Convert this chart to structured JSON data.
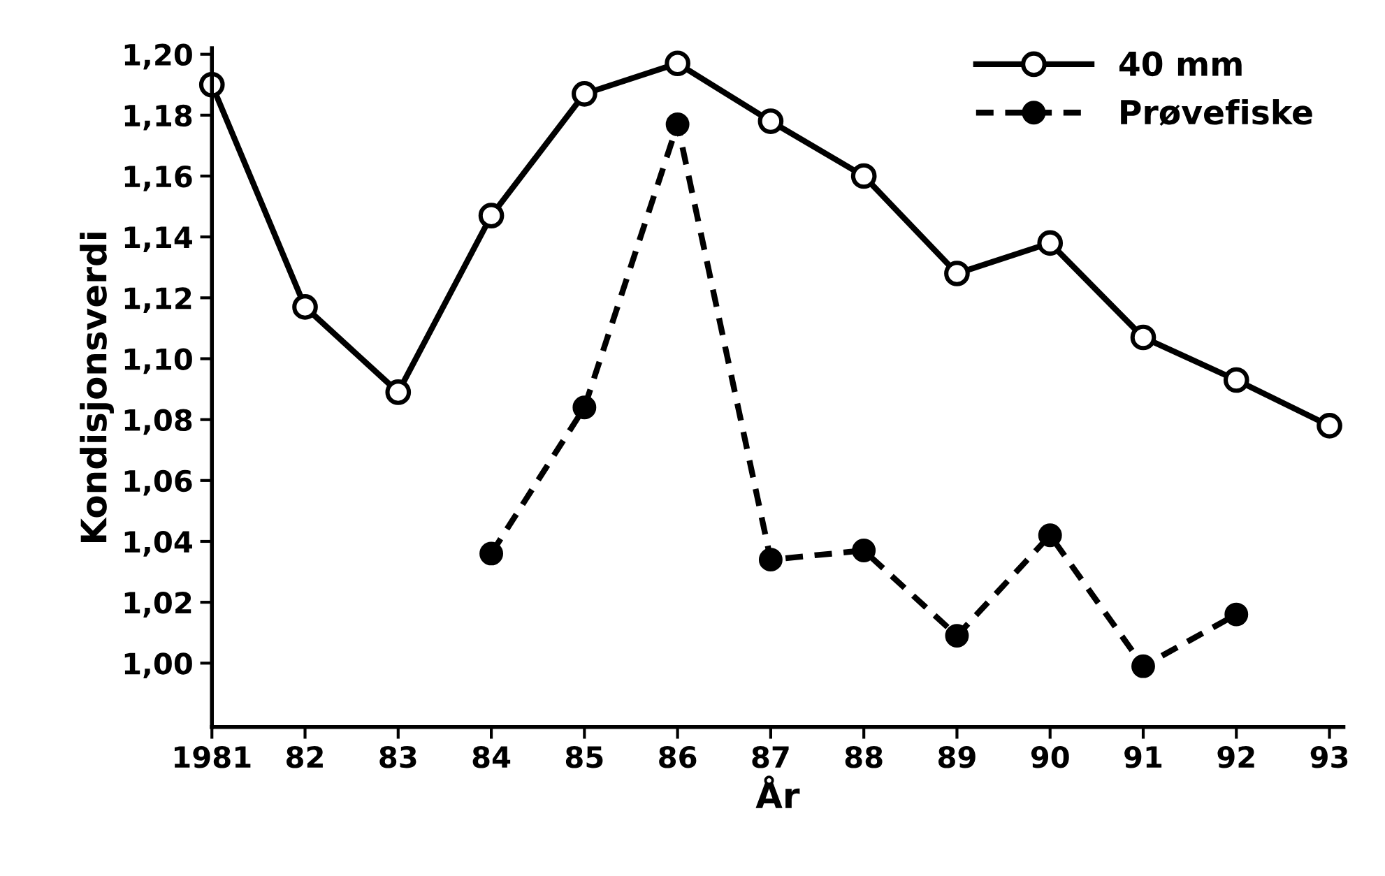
{
  "chart_data": {
    "type": "line",
    "xlabel": "År",
    "ylabel": "Kondisjonsverdi",
    "x": [
      1981,
      1982,
      1983,
      1984,
      1985,
      1986,
      1987,
      1988,
      1989,
      1990,
      1991,
      1992,
      1993
    ],
    "series": [
      {
        "name": "40 mm",
        "color": "#000000",
        "line_style": "solid",
        "marker": "circle",
        "values": [
          1.19,
          1.117,
          1.089,
          1.147,
          1.187,
          1.197,
          1.178,
          1.16,
          1.128,
          1.138,
          1.107,
          1.093,
          1.078
        ]
      },
      {
        "name": "Prøvefiske",
        "color": "#000000",
        "line_style": "dashed",
        "marker": "circle",
        "values": [
          null,
          null,
          null,
          1.036,
          1.084,
          1.177,
          1.034,
          1.037,
          1.009,
          1.042,
          0.999,
          1.016,
          null
        ]
      }
    ],
    "xlim": [
      1981,
      1993.15
    ],
    "ylim": [
      0.979,
      1.202
    ],
    "xticks": [
      {
        "value": 1981,
        "label": "1981"
      },
      {
        "value": 1982,
        "label": "82"
      },
      {
        "value": 1983,
        "label": "83"
      },
      {
        "value": 1984,
        "label": "84"
      },
      {
        "value": 1985,
        "label": "85"
      },
      {
        "value": 1986,
        "label": "86"
      },
      {
        "value": 1987,
        "label": "87"
      },
      {
        "value": 1988,
        "label": "88"
      },
      {
        "value": 1989,
        "label": "89"
      },
      {
        "value": 1990,
        "label": "90"
      },
      {
        "value": 1991,
        "label": "91"
      },
      {
        "value": 1992,
        "label": "92"
      },
      {
        "value": 1993,
        "label": "93"
      }
    ],
    "yticks": [
      {
        "value": 1.0,
        "label": "1,00"
      },
      {
        "value": 1.02,
        "label": "1,02"
      },
      {
        "value": 1.04,
        "label": "1,04"
      },
      {
        "value": 1.06,
        "label": "1,06"
      },
      {
        "value": 1.08,
        "label": "1,08"
      },
      {
        "value": 1.1,
        "label": "1,10"
      },
      {
        "value": 1.12,
        "label": "1,12"
      },
      {
        "value": 1.14,
        "label": "1,14"
      },
      {
        "value": 1.16,
        "label": "1,16"
      },
      {
        "value": 1.18,
        "label": "1,18"
      },
      {
        "value": 1.2,
        "label": "1,20"
      }
    ],
    "grid": false,
    "legend": "top right"
  }
}
